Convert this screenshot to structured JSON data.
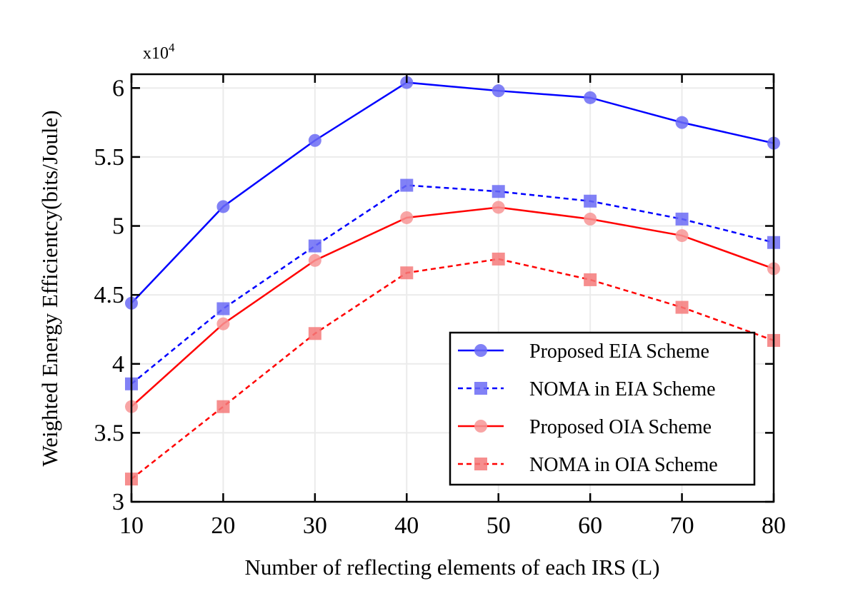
{
  "chart_data": {
    "type": "line",
    "xlabel": "Number of reflecting elements of each IRS (L)",
    "ylabel": "Weighted Energy Efficientcy(bits/Joule)",
    "y_multiplier_base": "x10",
    "y_multiplier_exp": "4",
    "x": [
      10,
      20,
      30,
      40,
      50,
      60,
      70,
      80
    ],
    "xlim": [
      10,
      80
    ],
    "ylim": [
      3,
      6.1
    ],
    "xticks": [
      "10",
      "20",
      "30",
      "40",
      "50",
      "60",
      "70",
      "80"
    ],
    "yticks": [
      "3",
      "3.5",
      "4",
      "4.5",
      "5",
      "5.5",
      "6"
    ],
    "ytick_values": [
      3,
      3.5,
      4,
      4.5,
      5,
      5.5,
      6
    ],
    "grid": true,
    "legend_placement": "bottom-right",
    "series": [
      {
        "name": "Proposed EIA Scheme",
        "color": "#0000ff",
        "marker_color": "#6b6bf5",
        "marker": "circle",
        "dash": "solid",
        "values": [
          4.44,
          5.14,
          5.62,
          6.04,
          5.98,
          5.93,
          5.75,
          5.6
        ]
      },
      {
        "name": "NOMA in EIA Scheme",
        "color": "#0000ff",
        "marker_color": "#6b6bf5",
        "marker": "square",
        "dash": "dashed",
        "values": [
          3.855,
          4.4,
          4.855,
          5.295,
          5.25,
          5.18,
          5.05,
          4.88
        ]
      },
      {
        "name": "Proposed OIA Scheme",
        "color": "#ff0000",
        "marker_color": "#f79595",
        "marker": "circle",
        "dash": "solid",
        "values": [
          3.69,
          4.29,
          4.75,
          5.06,
          5.135,
          5.05,
          4.93,
          4.69
        ]
      },
      {
        "name": "NOMA in OIA Scheme",
        "color": "#ff0000",
        "marker_color": "#f47a7a",
        "marker": "square",
        "dash": "dashed",
        "values": [
          3.165,
          3.69,
          4.22,
          4.66,
          4.76,
          4.61,
          4.41,
          4.17
        ]
      }
    ]
  }
}
